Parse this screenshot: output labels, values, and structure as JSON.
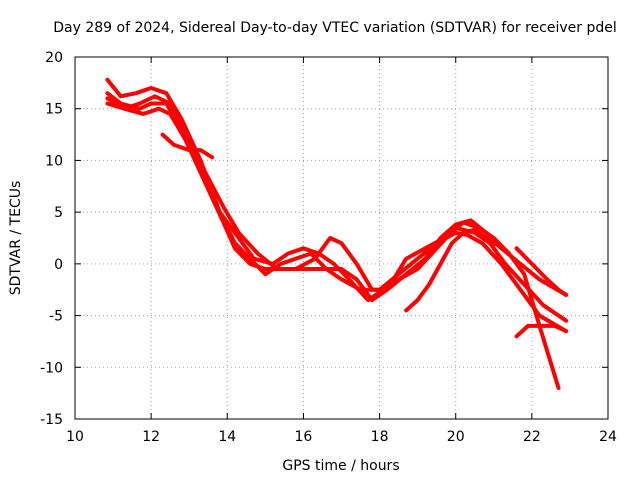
{
  "chart_data": {
    "type": "line",
    "title": "Day 289 of 2024, Sidereal Day-to-day VTEC variation (SDTVAR) for receiver pdel",
    "xlabel": "GPS time / hours",
    "ylabel": "SDTVAR / TECUs",
    "xlim": [
      10,
      24
    ],
    "ylim": [
      -15,
      20
    ],
    "xticks": [
      10,
      12,
      14,
      16,
      18,
      20,
      22,
      24
    ],
    "yticks": [
      -15,
      -10,
      -5,
      0,
      5,
      10,
      15,
      20
    ],
    "xtick_labels": [
      "10",
      "12",
      "14",
      "16",
      "18",
      "20",
      "22",
      "24"
    ],
    "ytick_labels": [
      "-15",
      "-10",
      "-5",
      "0",
      "5",
      "10",
      "15",
      "20"
    ],
    "grid": true,
    "series_color": "#ff0000",
    "series": [
      {
        "name": "track-1",
        "points": [
          [
            10.85,
            17.8
          ],
          [
            11.2,
            16.2
          ],
          [
            11.6,
            16.5
          ],
          [
            12.0,
            17.0
          ],
          [
            12.4,
            16.5
          ],
          [
            12.8,
            14.0
          ],
          [
            13.3,
            10.0
          ],
          [
            13.8,
            5.0
          ],
          [
            14.2,
            2.0
          ],
          [
            14.6,
            0.5
          ],
          [
            15.0,
            -1.0
          ],
          [
            15.4,
            0.0
          ],
          [
            15.8,
            0.5
          ],
          [
            16.2,
            1.0
          ],
          [
            16.6,
            -0.5
          ],
          [
            17.0,
            -1.5
          ],
          [
            17.5,
            -2.5
          ],
          [
            18.0,
            -2.5
          ],
          [
            18.5,
            -1.0
          ],
          [
            19.0,
            0.5
          ],
          [
            19.5,
            2.0
          ],
          [
            20.0,
            3.0
          ],
          [
            20.3,
            2.8
          ],
          [
            20.7,
            2.0
          ],
          [
            21.2,
            0.0
          ],
          [
            21.7,
            -2.5
          ],
          [
            22.2,
            -5.0
          ],
          [
            22.9,
            -6.5
          ]
        ]
      },
      {
        "name": "track-2",
        "points": [
          [
            10.85,
            16.5
          ],
          [
            11.2,
            15.5
          ],
          [
            11.7,
            15.0
          ],
          [
            12.0,
            15.5
          ],
          [
            12.4,
            15.5
          ],
          [
            12.8,
            13.0
          ],
          [
            13.3,
            9.5
          ],
          [
            13.8,
            5.0
          ],
          [
            14.3,
            2.5
          ],
          [
            14.7,
            0.5
          ],
          [
            15.2,
            0.0
          ],
          [
            15.6,
            1.0
          ],
          [
            16.0,
            1.5
          ],
          [
            16.4,
            1.0
          ],
          [
            16.8,
            0.0
          ],
          [
            17.2,
            -1.5
          ],
          [
            17.7,
            -3.5
          ],
          [
            18.1,
            -2.5
          ],
          [
            18.5,
            -1.5
          ],
          [
            19.0,
            -0.5
          ],
          [
            19.5,
            1.5
          ],
          [
            20.0,
            3.5
          ],
          [
            20.5,
            3.0
          ],
          [
            20.9,
            2.0
          ],
          [
            21.3,
            0.0
          ],
          [
            21.8,
            -2.0
          ],
          [
            22.3,
            -4.0
          ],
          [
            22.9,
            -5.5
          ]
        ]
      },
      {
        "name": "track-3",
        "points": [
          [
            10.85,
            16.0
          ],
          [
            11.3,
            15.0
          ],
          [
            11.7,
            15.5
          ],
          [
            12.1,
            16.2
          ],
          [
            12.5,
            15.5
          ],
          [
            12.9,
            12.5
          ],
          [
            13.4,
            9.0
          ],
          [
            13.9,
            5.5
          ],
          [
            14.3,
            3.0
          ],
          [
            14.8,
            1.0
          ],
          [
            15.3,
            -0.5
          ],
          [
            15.8,
            -0.5
          ],
          [
            16.3,
            0.5
          ],
          [
            16.7,
            2.5
          ],
          [
            17.0,
            2.0
          ],
          [
            17.4,
            0.0
          ],
          [
            17.8,
            -2.5
          ],
          [
            18.2,
            -2.5
          ],
          [
            18.7,
            -1.0
          ],
          [
            19.2,
            0.5
          ],
          [
            19.6,
            2.5
          ],
          [
            20.0,
            3.8
          ],
          [
            20.4,
            4.2
          ],
          [
            20.8,
            3.0
          ],
          [
            21.2,
            1.5
          ],
          [
            21.7,
            0.0
          ],
          [
            22.2,
            -1.5
          ],
          [
            22.9,
            -3.0
          ]
        ]
      },
      {
        "name": "track-4",
        "points": [
          [
            10.85,
            15.5
          ],
          [
            11.3,
            15.0
          ],
          [
            11.8,
            14.5
          ],
          [
            12.2,
            15.0
          ],
          [
            12.5,
            14.5
          ],
          [
            12.9,
            12.0
          ],
          [
            13.4,
            8.0
          ],
          [
            13.9,
            4.0
          ],
          [
            14.2,
            1.5
          ],
          [
            14.6,
            0.0
          ],
          [
            15.0,
            -0.5
          ],
          [
            15.5,
            -0.5
          ],
          [
            16.0,
            -0.5
          ],
          [
            16.5,
            -0.5
          ],
          [
            17.0,
            -0.5
          ],
          [
            17.4,
            -1.5
          ],
          [
            17.8,
            -3.5
          ],
          [
            18.2,
            -2.5
          ],
          [
            18.7,
            0.5
          ],
          [
            19.2,
            1.5
          ],
          [
            19.7,
            2.5
          ],
          [
            20.2,
            4.0
          ],
          [
            20.6,
            3.5
          ],
          [
            21.0,
            2.5
          ],
          [
            21.4,
            1.0
          ],
          [
            21.8,
            -1.0
          ],
          [
            22.2,
            -6.0
          ],
          [
            22.7,
            -12.0
          ]
        ]
      },
      {
        "name": "track-5",
        "points": [
          [
            12.3,
            12.5
          ],
          [
            12.6,
            11.5
          ],
          [
            13.0,
            11.0
          ],
          [
            13.3,
            11.0
          ],
          [
            13.6,
            10.3
          ]
        ]
      },
      {
        "name": "track-6",
        "points": [
          [
            18.7,
            -4.5
          ],
          [
            19.0,
            -3.5
          ],
          [
            19.3,
            -2.0
          ],
          [
            19.6,
            0.0
          ],
          [
            19.9,
            2.0
          ],
          [
            20.2,
            3.0
          ],
          [
            20.5,
            3.3
          ],
          [
            20.8,
            2.5
          ],
          [
            21.1,
            1.8
          ]
        ]
      },
      {
        "name": "track-7",
        "points": [
          [
            21.6,
            1.5
          ],
          [
            22.0,
            0.0
          ],
          [
            22.4,
            -1.5
          ],
          [
            22.7,
            -2.5
          ],
          [
            22.9,
            -3.0
          ]
        ]
      },
      {
        "name": "track-8",
        "points": [
          [
            21.6,
            -7.0
          ],
          [
            21.9,
            -6.0
          ],
          [
            22.2,
            -6.0
          ],
          [
            22.6,
            -6.0
          ],
          [
            22.9,
            -6.5
          ]
        ]
      }
    ]
  }
}
